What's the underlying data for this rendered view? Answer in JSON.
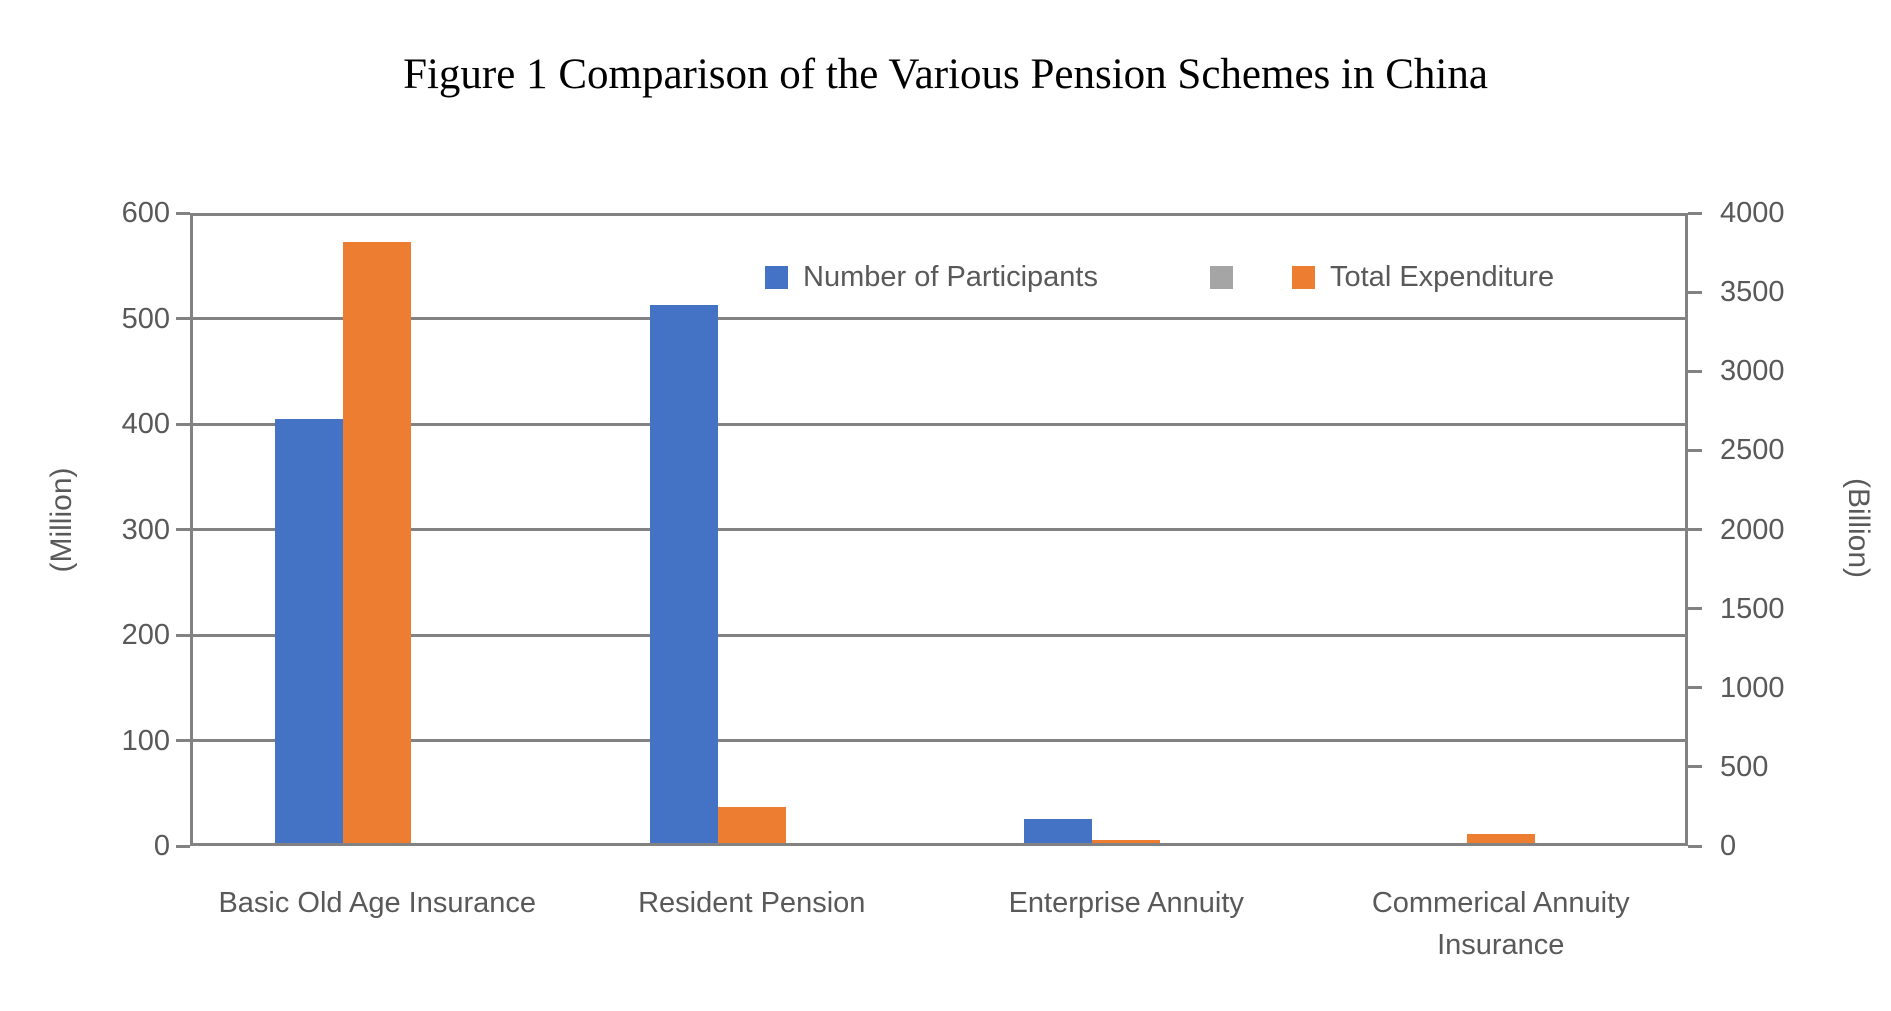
{
  "title": "Figure 1 Comparison of the Various Pension Schemes in China",
  "chart_data": {
    "type": "bar",
    "title": "Figure 1 Comparison of the Various Pension Schemes in China",
    "categories": [
      "Basic Old Age Insurance",
      "Resident Pension",
      "Enterprise Annuity",
      "Commerical Annuity Insurance"
    ],
    "series": [
      {
        "name": "Number of Participants",
        "axis": "left",
        "unit": "Million",
        "color": "#4472C4",
        "values": [
          402,
          510,
          23,
          0
        ]
      },
      {
        "name": "",
        "axis": "left",
        "unit": "",
        "color": "#A5A5A5",
        "values": [
          0,
          0,
          0,
          0
        ]
      },
      {
        "name": "Total Expenditure",
        "axis": "right",
        "unit": "Billion",
        "color": "#ED7D31",
        "values": [
          3800,
          230,
          20,
          60
        ]
      }
    ],
    "left_axis": {
      "label": "(Million)",
      "min": 0,
      "max": 600,
      "step": 100,
      "ticks": [
        0,
        100,
        200,
        300,
        400,
        500,
        600
      ]
    },
    "right_axis": {
      "label": "(Billion)",
      "min": 0,
      "max": 4000,
      "step": 500,
      "ticks": [
        0,
        500,
        1000,
        1500,
        2000,
        2500,
        3000,
        3500,
        4000
      ]
    },
    "grid": true,
    "legend_position": "top-inside"
  },
  "legend": {
    "items": [
      {
        "label": "Number of Participants",
        "color": "#4472C4"
      },
      {
        "label": "",
        "color": "#A5A5A5"
      },
      {
        "label": "Total Expenditure",
        "color": "#ED7D31"
      }
    ]
  },
  "colors": {
    "participants_blue": "#4472C4",
    "expenditure_orange": "#ED7D31",
    "empty_series_gray": "#A5A5A5",
    "axis_line": "#828282",
    "axis_text": "#595959",
    "title_text": "#000000"
  }
}
